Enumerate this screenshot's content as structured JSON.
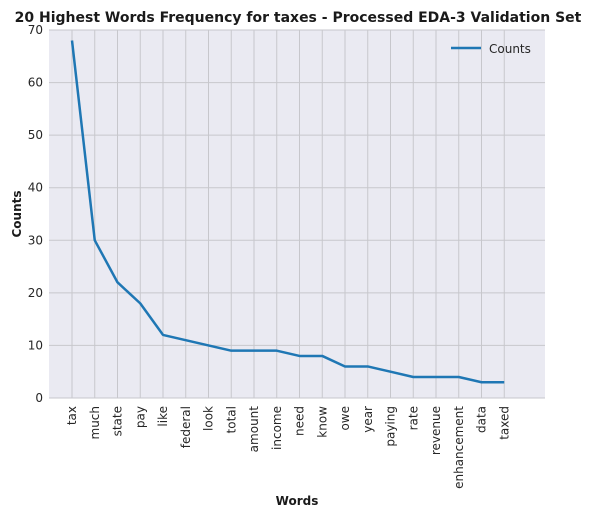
{
  "chart_data": {
    "type": "line",
    "title": "20 Highest Words Frequency for taxes - Processed EDA-3 Validation Set",
    "xlabel": "Words",
    "ylabel": "Counts",
    "categories": [
      "tax",
      "much",
      "state",
      "pay",
      "like",
      "federal",
      "look",
      "total",
      "amount",
      "income",
      "need",
      "know",
      "owe",
      "year",
      "paying",
      "rate",
      "revenue",
      "enhancement",
      "data",
      "taxed"
    ],
    "series": [
      {
        "name": "Counts",
        "values": [
          68,
          30,
          22,
          18,
          12,
          11,
          10,
          9,
          9,
          9,
          8,
          8,
          6,
          6,
          5,
          4,
          4,
          4,
          3,
          3
        ]
      }
    ],
    "ylim": [
      0,
      70
    ],
    "yticks": [
      0,
      10,
      20,
      30,
      40,
      50,
      60,
      70
    ],
    "grid": true,
    "legend_position": "top-right",
    "colors": {
      "line": "#1f77b4",
      "plot_bg": "#eaeaf2",
      "grid": "#c7c7cc"
    }
  }
}
